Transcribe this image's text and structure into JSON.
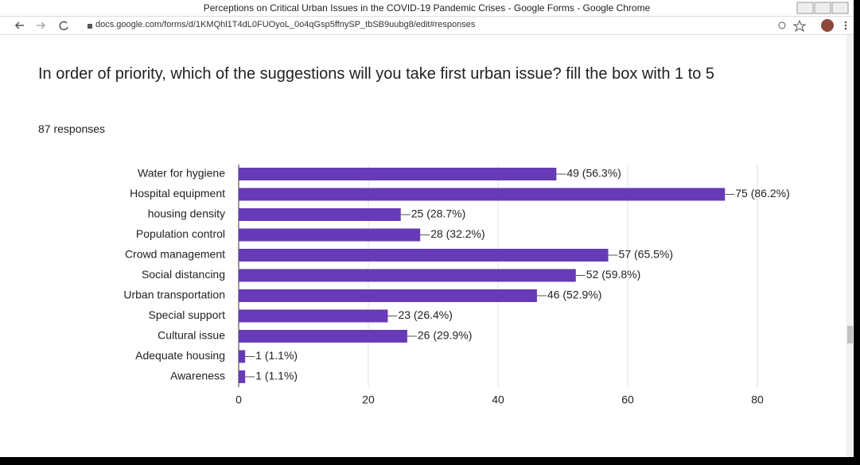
{
  "window": {
    "title": "Perceptions on Critical Urban Issues in the COVID-19 Pandemic Crises - Google Forms - Google Chrome",
    "url": "docs.google.com/forms/d/1KMQhl1T4dL0FUOyoL_0o4qGsp5ffnySP_tbSB9uubg8/edit#responses"
  },
  "question": {
    "text": "In order of priority, which of the suggestions will you take first urban issue? fill the box with 1 to 5",
    "responses": "87 responses"
  },
  "chart_data": {
    "type": "bar",
    "orientation": "horizontal",
    "categories": [
      "Water for hygiene",
      "Hospital equipment",
      "housing density",
      "Population control",
      "Crowd management",
      "Social distancing",
      "Urban transportation",
      "Special support",
      "Cultural issue",
      "Adequate housing",
      "Awareness"
    ],
    "values": [
      49,
      75,
      25,
      28,
      57,
      52,
      46,
      23,
      26,
      1,
      1
    ],
    "value_labels": [
      "49 (56.3%)",
      "75 (86.2%)",
      "25 (28.7%)",
      "28 (32.2%)",
      "57 (65.5%)",
      "52 (59.8%)",
      "46 (52.9%)",
      "23 (26.4%)",
      "26 (29.9%)",
      "1 (1.1%)",
      "1 (1.1%)"
    ],
    "color": "#673ab7",
    "xlim": [
      0,
      80
    ],
    "xticks": [
      0,
      20,
      40,
      60,
      80
    ],
    "grid": true
  }
}
